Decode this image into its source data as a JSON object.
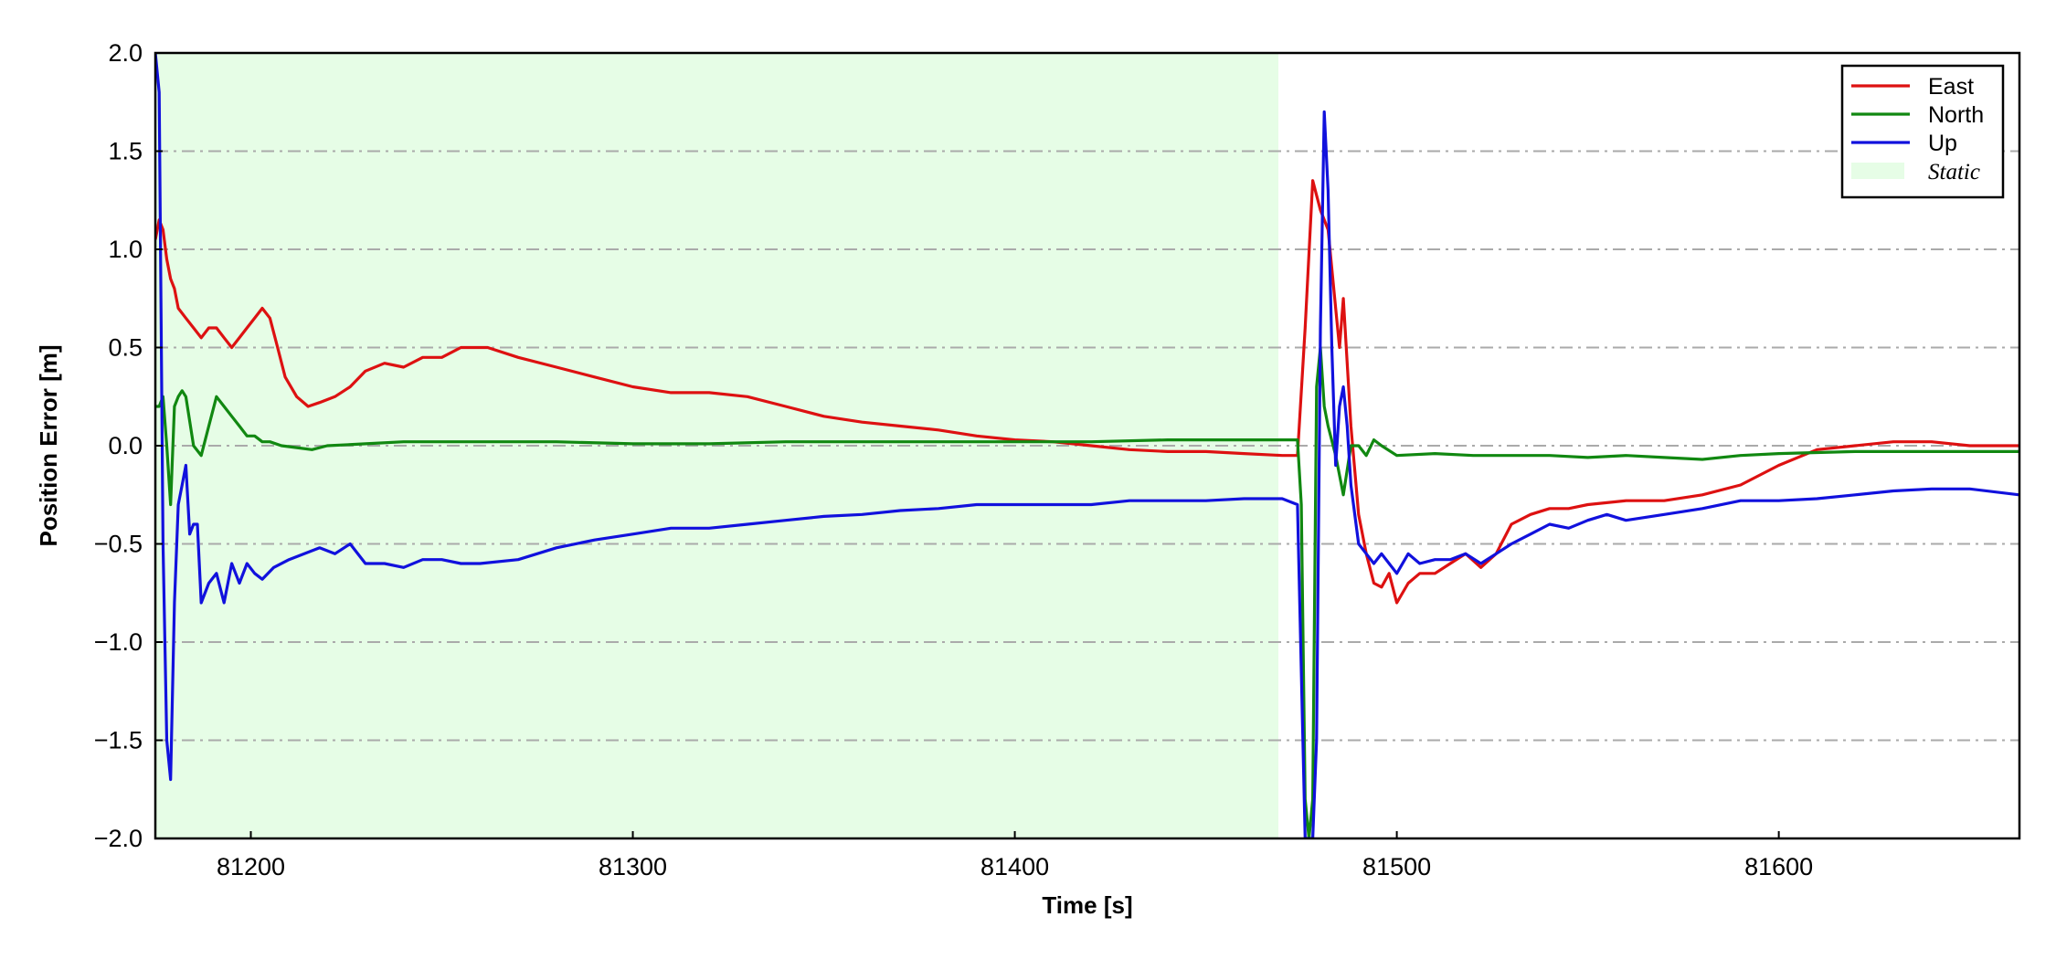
{
  "chart_data": {
    "type": "line",
    "title": "",
    "xlabel": "Time [s]",
    "ylabel": "Position Error [m]",
    "xlim": [
      81175,
      81663
    ],
    "ylim": [
      -2.0,
      2.0
    ],
    "xticks": [
      81200,
      81300,
      81400,
      81500,
      81600
    ],
    "yticks": [
      -2.0,
      -1.5,
      -1.0,
      -0.5,
      0.0,
      0.5,
      1.0,
      1.5,
      2.0
    ],
    "ytick_labels": [
      "−2.0",
      "−1.5",
      "−1.0",
      "−0.5",
      "0.0",
      "0.5",
      "1.0",
      "1.5",
      "2.0"
    ],
    "grid": "horizontal dash-dot",
    "legend_position": "top-right",
    "static_region": {
      "label": "Static",
      "x_start": 81175,
      "x_end": 81469,
      "color": "#e6fde6"
    },
    "series": [
      {
        "name": "East",
        "color": "#dd1111",
        "x": [
          81175,
          81176,
          81177,
          81178,
          81179,
          81180,
          81181,
          81183,
          81185,
          81187,
          81189,
          81191,
          81193,
          81195,
          81197,
          81199,
          81201,
          81203,
          81205,
          81207,
          81209,
          81212,
          81215,
          81218,
          81222,
          81226,
          81230,
          81235,
          81240,
          81245,
          81250,
          81255,
          81262,
          81270,
          81280,
          81290,
          81300,
          81310,
          81320,
          81330,
          81340,
          81350,
          81360,
          81370,
          81380,
          81390,
          81400,
          81410,
          81420,
          81430,
          81440,
          81450,
          81460,
          81470,
          81474,
          81476,
          81478,
          81480,
          81482,
          81484,
          81485,
          81486,
          81488,
          81490,
          81492,
          81494,
          81496,
          81498,
          81500,
          81503,
          81506,
          81510,
          81514,
          81518,
          81522,
          81526,
          81530,
          81535,
          81540,
          81545,
          81550,
          81560,
          81570,
          81580,
          81590,
          81600,
          81610,
          81620,
          81630,
          81640,
          81650,
          81663
        ],
        "values": [
          1.05,
          1.15,
          1.1,
          0.95,
          0.85,
          0.8,
          0.7,
          0.65,
          0.6,
          0.55,
          0.6,
          0.6,
          0.55,
          0.5,
          0.55,
          0.6,
          0.65,
          0.7,
          0.65,
          0.5,
          0.35,
          0.25,
          0.2,
          0.22,
          0.25,
          0.3,
          0.38,
          0.42,
          0.4,
          0.45,
          0.45,
          0.5,
          0.5,
          0.45,
          0.4,
          0.35,
          0.3,
          0.27,
          0.27,
          0.25,
          0.2,
          0.15,
          0.12,
          0.1,
          0.08,
          0.05,
          0.03,
          0.02,
          0.0,
          -0.02,
          -0.03,
          -0.03,
          -0.04,
          -0.05,
          -0.05,
          0.6,
          1.35,
          1.2,
          1.1,
          0.7,
          0.5,
          0.75,
          0.1,
          -0.35,
          -0.55,
          -0.7,
          -0.72,
          -0.65,
          -0.8,
          -0.7,
          -0.65,
          -0.65,
          -0.6,
          -0.55,
          -0.62,
          -0.55,
          -0.4,
          -0.35,
          -0.32,
          -0.32,
          -0.3,
          -0.28,
          -0.28,
          -0.25,
          -0.2,
          -0.1,
          -0.02,
          0.0,
          0.02,
          0.02,
          0.0,
          0.0
        ]
      },
      {
        "name": "North",
        "color": "#118811",
        "x": [
          81175,
          81176,
          81177,
          81178,
          81179,
          81180,
          81181,
          81182,
          81183,
          81185,
          81187,
          81189,
          81191,
          81193,
          81195,
          81197,
          81199,
          81201,
          81203,
          81205,
          81208,
          81212,
          81216,
          81220,
          81230,
          81240,
          81260,
          81280,
          81300,
          81320,
          81340,
          81360,
          81380,
          81400,
          81420,
          81440,
          81460,
          81474,
          81475,
          81476,
          81477,
          81478,
          81479,
          81480,
          81481,
          81482,
          81484,
          81486,
          81488,
          81490,
          81492,
          81494,
          81496,
          81500,
          81510,
          81520,
          81530,
          81540,
          81550,
          81560,
          81570,
          81580,
          81590,
          81600,
          81620,
          81640,
          81663
        ],
        "values": [
          0.2,
          0.2,
          0.25,
          0.0,
          -0.3,
          0.2,
          0.25,
          0.28,
          0.25,
          0.0,
          -0.05,
          0.1,
          0.25,
          0.2,
          0.15,
          0.1,
          0.05,
          0.05,
          0.02,
          0.02,
          0.0,
          -0.01,
          -0.02,
          0.0,
          0.01,
          0.02,
          0.02,
          0.02,
          0.01,
          0.01,
          0.02,
          0.02,
          0.02,
          0.02,
          0.02,
          0.03,
          0.03,
          0.03,
          -0.3,
          -1.8,
          -2.0,
          -1.8,
          0.3,
          0.5,
          0.2,
          0.1,
          -0.05,
          -0.25,
          0.0,
          0.0,
          -0.05,
          0.03,
          0.0,
          -0.05,
          -0.04,
          -0.05,
          -0.05,
          -0.05,
          -0.06,
          -0.05,
          -0.06,
          -0.07,
          -0.05,
          -0.04,
          -0.03,
          -0.03,
          -0.03
        ]
      },
      {
        "name": "Up",
        "color": "#1111dd",
        "x": [
          81175,
          81176,
          81177,
          81178,
          81179,
          81180,
          81181,
          81182,
          81183,
          81184,
          81185,
          81186,
          81187,
          81189,
          81191,
          81193,
          81195,
          81197,
          81199,
          81201,
          81203,
          81206,
          81210,
          81214,
          81218,
          81222,
          81226,
          81230,
          81235,
          81240,
          81245,
          81250,
          81255,
          81260,
          81270,
          81280,
          81290,
          81300,
          81310,
          81320,
          81330,
          81340,
          81350,
          81360,
          81370,
          81380,
          81390,
          81400,
          81410,
          81420,
          81430,
          81440,
          81450,
          81460,
          81470,
          81474,
          81476,
          81478,
          81479,
          81480,
          81481,
          81482,
          81483,
          81484,
          81485,
          81486,
          81487,
          81488,
          81490,
          81492,
          81494,
          81496,
          81498,
          81500,
          81503,
          81506,
          81510,
          81514,
          81518,
          81522,
          81526,
          81530,
          81535,
          81540,
          81545,
          81550,
          81555,
          81560,
          81570,
          81580,
          81590,
          81600,
          81610,
          81620,
          81630,
          81640,
          81650,
          81663
        ],
        "values": [
          2.0,
          1.8,
          -0.5,
          -1.5,
          -1.7,
          -0.8,
          -0.3,
          -0.2,
          -0.1,
          -0.45,
          -0.4,
          -0.4,
          -0.8,
          -0.7,
          -0.65,
          -0.8,
          -0.6,
          -0.7,
          -0.6,
          -0.65,
          -0.68,
          -0.62,
          -0.58,
          -0.55,
          -0.52,
          -0.55,
          -0.5,
          -0.6,
          -0.6,
          -0.62,
          -0.58,
          -0.58,
          -0.6,
          -0.6,
          -0.58,
          -0.52,
          -0.48,
          -0.45,
          -0.42,
          -0.42,
          -0.4,
          -0.38,
          -0.36,
          -0.35,
          -0.33,
          -0.32,
          -0.3,
          -0.3,
          -0.3,
          -0.3,
          -0.28,
          -0.28,
          -0.28,
          -0.27,
          -0.27,
          -0.3,
          -2.0,
          -2.0,
          -1.5,
          0.6,
          1.7,
          1.3,
          0.5,
          -0.1,
          0.2,
          0.3,
          0.1,
          -0.2,
          -0.5,
          -0.55,
          -0.6,
          -0.55,
          -0.6,
          -0.65,
          -0.55,
          -0.6,
          -0.58,
          -0.58,
          -0.55,
          -0.6,
          -0.55,
          -0.5,
          -0.45,
          -0.4,
          -0.42,
          -0.38,
          -0.35,
          -0.38,
          -0.35,
          -0.32,
          -0.28,
          -0.28,
          -0.27,
          -0.25,
          -0.23,
          -0.22,
          -0.22,
          -0.25
        ]
      }
    ]
  }
}
